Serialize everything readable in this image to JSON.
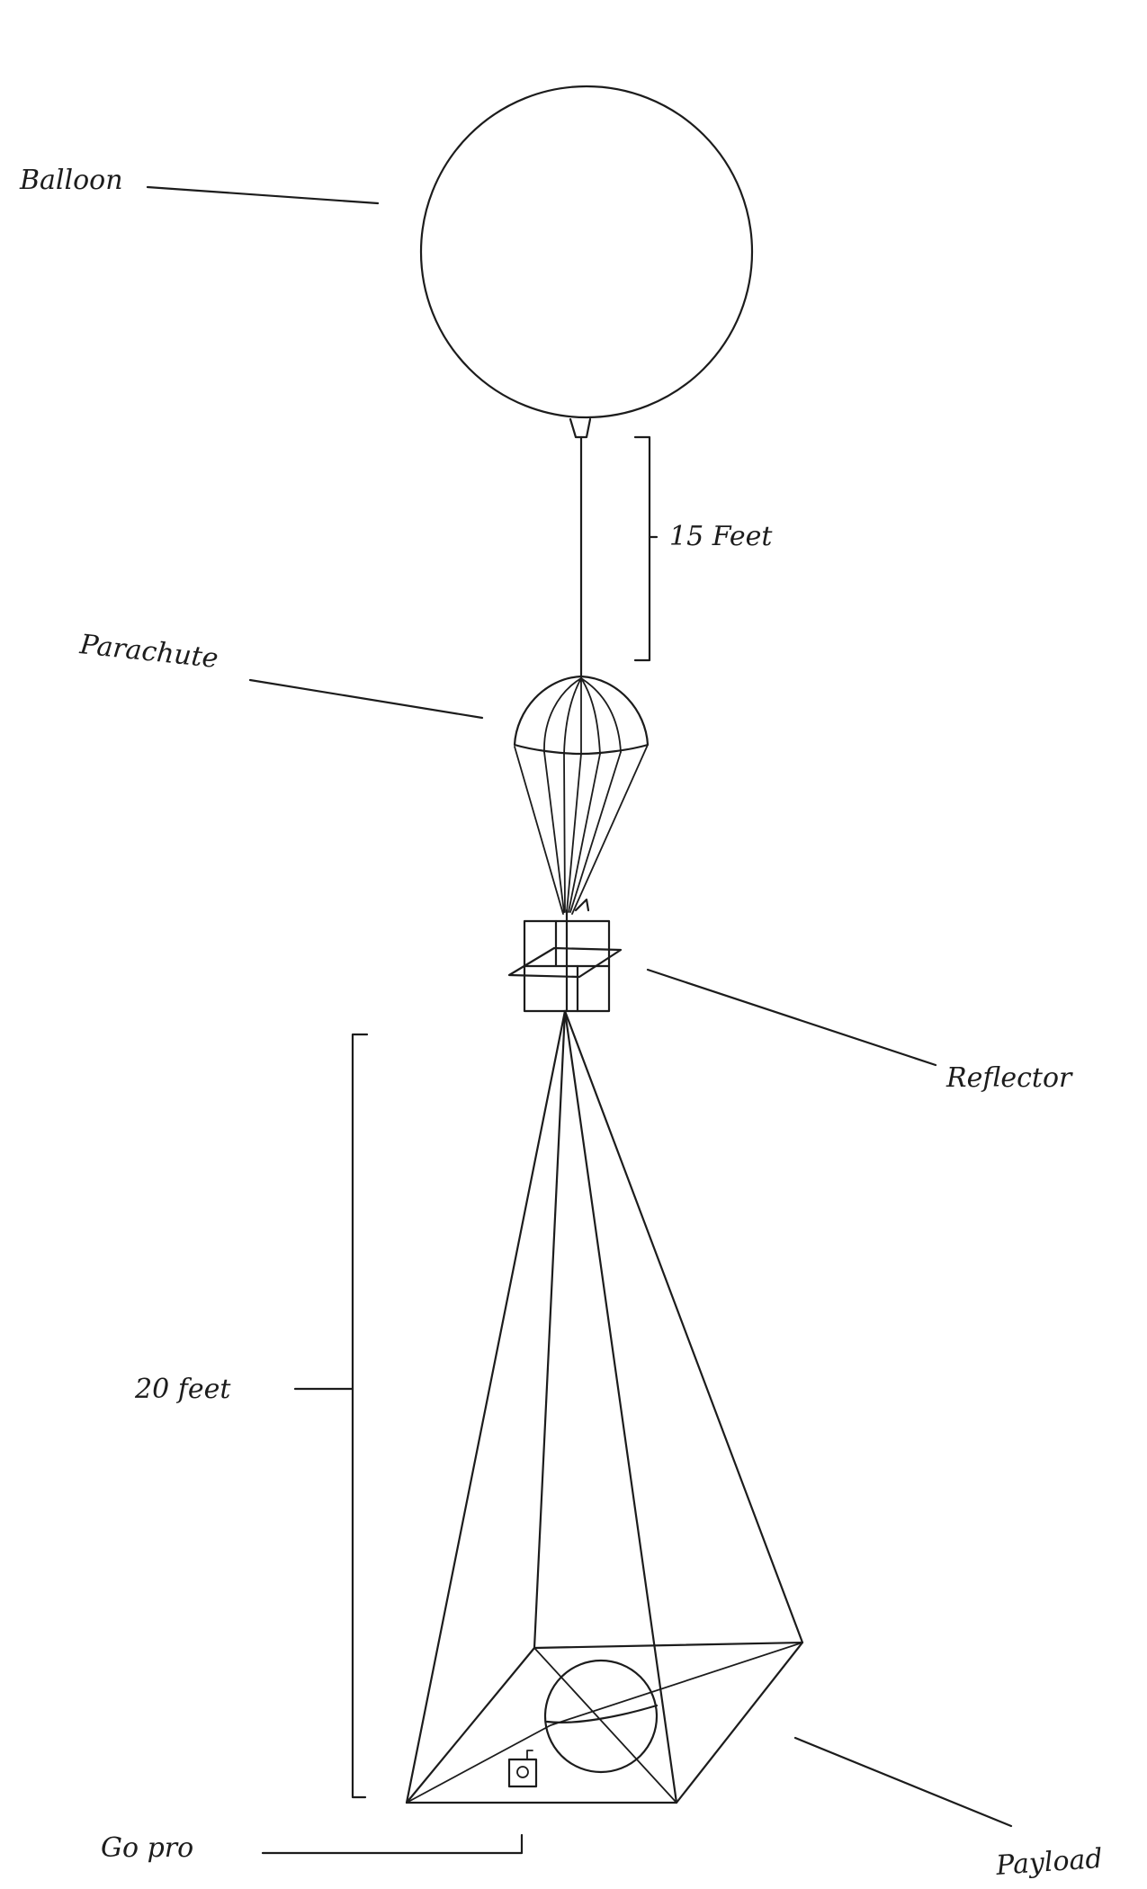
{
  "labels": {
    "balloon": "Balloon",
    "distance_upper": "15 Feet",
    "parachute": "Parachute",
    "reflector": "Reflector",
    "distance_lower": "20 feet",
    "gopro": "Go pro",
    "payload": "Payload"
  }
}
